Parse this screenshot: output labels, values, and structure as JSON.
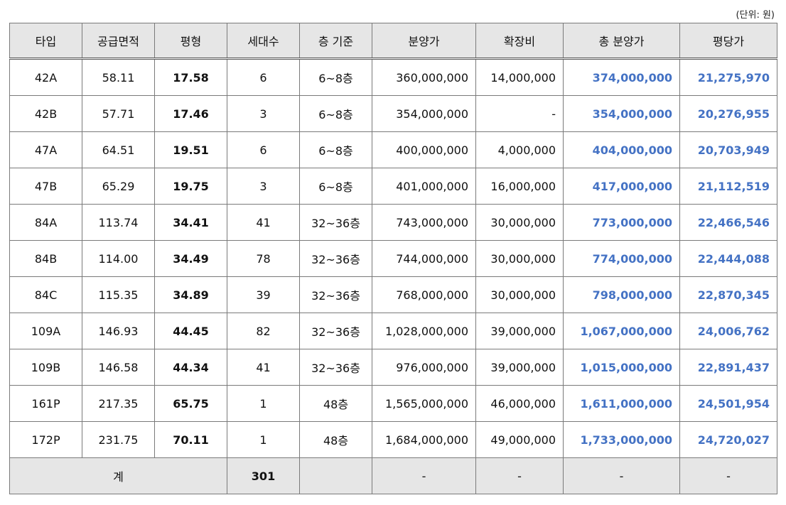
{
  "unit_note": "(단위: 원)",
  "headers": [
    "타입",
    "공급면적",
    "평형",
    "세대수",
    "층 기준",
    "분양가",
    "확장비",
    "총 분양가",
    "평당가"
  ],
  "rows": [
    {
      "type": "42A",
      "area": "58.11",
      "pyeong": "17.58",
      "units": "6",
      "floor": "6~8층",
      "price": "360,000,000",
      "ext": "14,000,000",
      "total": "374,000,000",
      "per_pyeong": "21,275,970"
    },
    {
      "type": "42B",
      "area": "57.71",
      "pyeong": "17.46",
      "units": "3",
      "floor": "6~8층",
      "price": "354,000,000",
      "ext": "-",
      "total": "354,000,000",
      "per_pyeong": "20,276,955"
    },
    {
      "type": "47A",
      "area": "64.51",
      "pyeong": "19.51",
      "units": "6",
      "floor": "6~8층",
      "price": "400,000,000",
      "ext": "4,000,000",
      "total": "404,000,000",
      "per_pyeong": "20,703,949"
    },
    {
      "type": "47B",
      "area": "65.29",
      "pyeong": "19.75",
      "units": "3",
      "floor": "6~8층",
      "price": "401,000,000",
      "ext": "16,000,000",
      "total": "417,000,000",
      "per_pyeong": "21,112,519"
    },
    {
      "type": "84A",
      "area": "113.74",
      "pyeong": "34.41",
      "units": "41",
      "floor": "32~36층",
      "price": "743,000,000",
      "ext": "30,000,000",
      "total": "773,000,000",
      "per_pyeong": "22,466,546"
    },
    {
      "type": "84B",
      "area": "114.00",
      "pyeong": "34.49",
      "units": "78",
      "floor": "32~36층",
      "price": "744,000,000",
      "ext": "30,000,000",
      "total": "774,000,000",
      "per_pyeong": "22,444,088"
    },
    {
      "type": "84C",
      "area": "115.35",
      "pyeong": "34.89",
      "units": "39",
      "floor": "32~36층",
      "price": "768,000,000",
      "ext": "30,000,000",
      "total": "798,000,000",
      "per_pyeong": "22,870,345"
    },
    {
      "type": "109A",
      "area": "146.93",
      "pyeong": "44.45",
      "units": "82",
      "floor": "32~36층",
      "price": "1,028,000,000",
      "ext": "39,000,000",
      "total": "1,067,000,000",
      "per_pyeong": "24,006,762"
    },
    {
      "type": "109B",
      "area": "146.58",
      "pyeong": "44.34",
      "units": "41",
      "floor": "32~36층",
      "price": "976,000,000",
      "ext": "39,000,000",
      "total": "1,015,000,000",
      "per_pyeong": "22,891,437"
    },
    {
      "type": "161P",
      "area": "217.35",
      "pyeong": "65.75",
      "units": "1",
      "floor": "48층",
      "price": "1,565,000,000",
      "ext": "46,000,000",
      "total": "1,611,000,000",
      "per_pyeong": "24,501,954"
    },
    {
      "type": "172P",
      "area": "231.75",
      "pyeong": "70.11",
      "units": "1",
      "floor": "48층",
      "price": "1,684,000,000",
      "ext": "49,000,000",
      "total": "1,733,000,000",
      "per_pyeong": "24,720,027"
    }
  ],
  "total_row": {
    "label": "계",
    "units": "301",
    "floor": "",
    "price": "-",
    "ext": "-",
    "total": "-",
    "per_pyeong": "-"
  },
  "colors": {
    "header_bg": "#e6e6e6",
    "highlight_blue": "#4472c4",
    "border": "#7a7a7a"
  }
}
